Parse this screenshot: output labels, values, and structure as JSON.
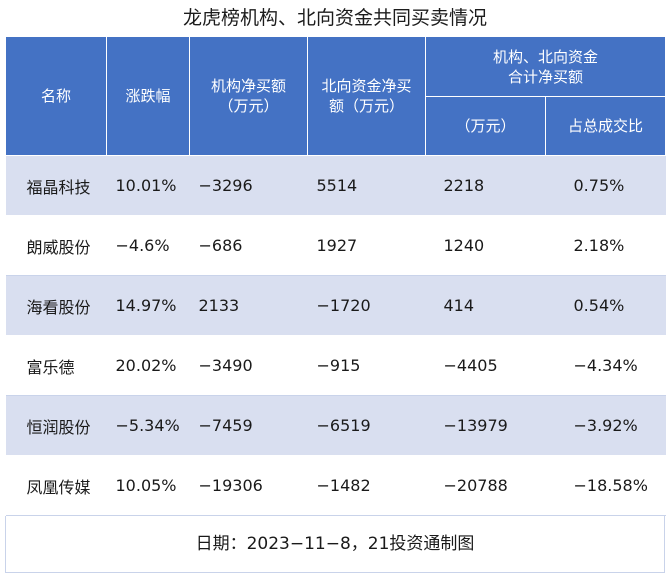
{
  "title": "龙虎榜机构、北向资金共同买卖情况",
  "headers": {
    "name": "名称",
    "change": "涨跌幅",
    "inst_net_line1": "机构净买额",
    "inst_net_line2": "（万元）",
    "north_net_line1": "北向资金净买",
    "north_net_line2": "额（万元）",
    "combined_line1": "机构、北向资金",
    "combined_line2": "合计净买额",
    "combined_unit": "（万元）",
    "turnover_share": "占总成交比"
  },
  "rows": [
    {
      "name": "福晶科技",
      "change": "10.01%",
      "inst_net": "−3296",
      "north_net": "5514",
      "combined": "2218",
      "share": "0.75%"
    },
    {
      "name": "朗威股份",
      "change": "−4.6%",
      "inst_net": "−686",
      "north_net": "1927",
      "combined": "1240",
      "share": "2.18%"
    },
    {
      "name": "海看股份",
      "change": "14.97%",
      "inst_net": "2133",
      "north_net": "−1720",
      "combined": "414",
      "share": "0.54%"
    },
    {
      "name": "富乐德",
      "change": "20.02%",
      "inst_net": "−3490",
      "north_net": "−915",
      "combined": "−4405",
      "share": "−4.34%"
    },
    {
      "name": "恒润股份",
      "change": "−5.34%",
      "inst_net": "−7459",
      "north_net": "−6519",
      "combined": "−13979",
      "share": "−3.92%"
    },
    {
      "name": "凤凰传媒",
      "change": "10.05%",
      "inst_net": "−19306",
      "north_net": "−1482",
      "combined": "−20788",
      "share": "−18.58%"
    }
  ],
  "footer": "日期：2023−11−8，21投资通制图",
  "colors": {
    "header_bg": "#4472c4",
    "band_bg": "#d9dff0"
  }
}
